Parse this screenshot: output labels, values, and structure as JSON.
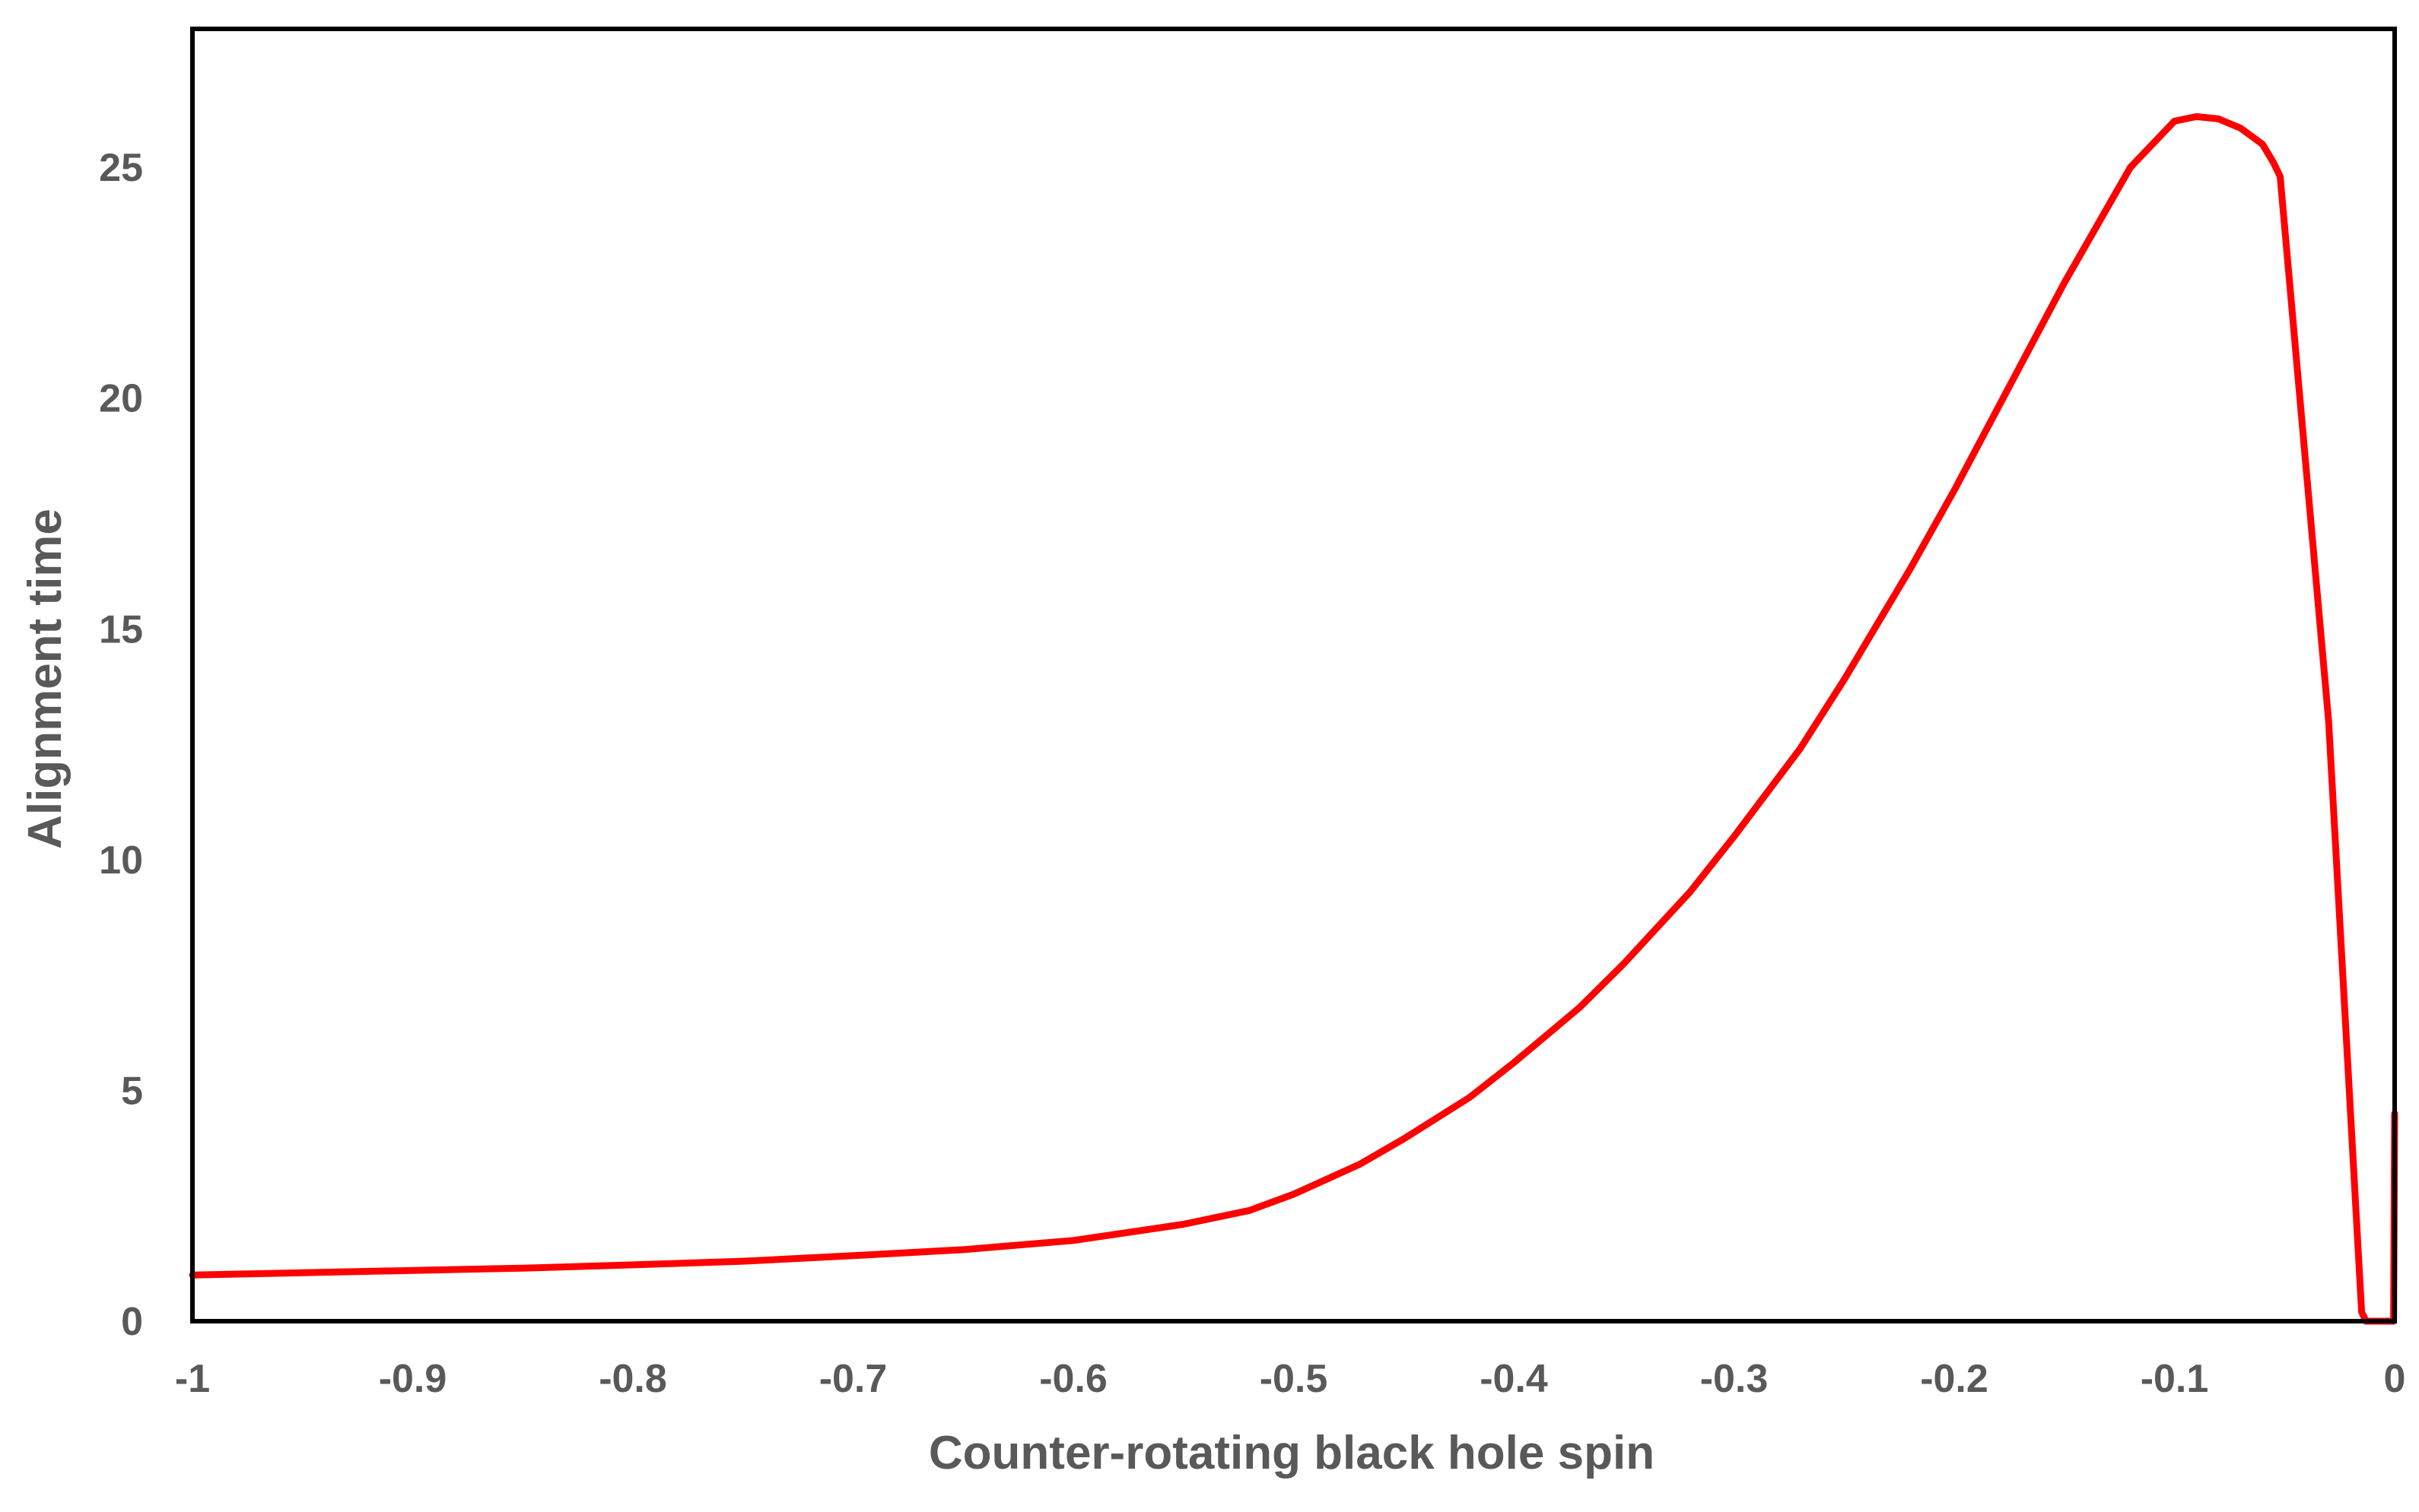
{
  "chart_data": {
    "type": "line",
    "title": "",
    "xlabel": "Counter-rotating black hole spin",
    "ylabel": "Alignment time",
    "xlim": [
      -1,
      0
    ],
    "ylim": [
      0,
      28
    ],
    "x_ticks": [
      -1,
      -0.9,
      -0.8,
      -0.7,
      -0.6,
      -0.5,
      -0.4,
      -0.3,
      -0.2,
      -0.1,
      0
    ],
    "x_tick_labels": [
      "-1",
      "-0.9",
      "-0.8",
      "-0.7",
      "-0.6",
      "-0.5",
      "-0.4",
      "-0.3",
      "-0.2",
      "-0.1",
      "0"
    ],
    "y_ticks": [
      0,
      5,
      10,
      15,
      20,
      25
    ],
    "y_tick_labels": [
      "0",
      "5",
      "10",
      "15",
      "20",
      "25"
    ],
    "grid": false,
    "legend": "none",
    "series": [
      {
        "color": "#ff0000",
        "x": [
          -1.0,
          -0.95,
          -0.9,
          -0.85,
          -0.8,
          -0.75,
          -0.7,
          -0.65,
          -0.6,
          -0.55,
          -0.52,
          -0.5,
          -0.47,
          -0.45,
          -0.42,
          -0.4,
          -0.37,
          -0.35,
          -0.32,
          -0.3,
          -0.27,
          -0.25,
          -0.22,
          -0.2,
          -0.17,
          -0.15,
          -0.12,
          -0.1,
          -0.09,
          -0.08,
          -0.07,
          -0.06,
          -0.055,
          -0.052,
          -0.03,
          -0.015,
          -0.013,
          -0.012,
          -0.0005,
          0.0
        ],
        "y": [
          1.0,
          1.05,
          1.1,
          1.15,
          1.22,
          1.3,
          1.42,
          1.55,
          1.75,
          2.1,
          2.4,
          2.75,
          3.4,
          3.95,
          4.85,
          5.6,
          6.8,
          7.75,
          9.3,
          10.5,
          12.4,
          13.9,
          16.3,
          18.0,
          20.7,
          22.5,
          25.0,
          26.0,
          26.1,
          26.05,
          25.85,
          25.5,
          25.1,
          24.8,
          13.0,
          0.2,
          0.0,
          0.0,
          0.0,
          4.5
        ]
      }
    ]
  }
}
